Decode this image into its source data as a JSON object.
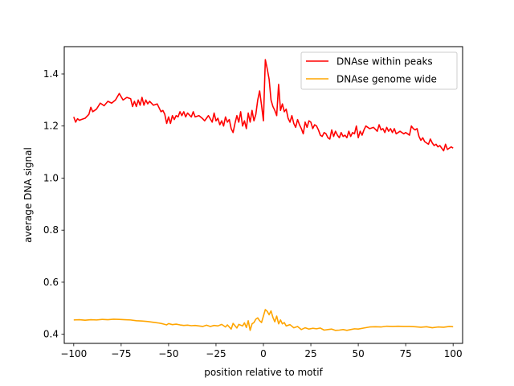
{
  "chart_data": {
    "type": "line",
    "title": "",
    "xlabel": "position relative to motif",
    "ylabel": "average DNA signal",
    "xlim": [
      -105,
      105
    ],
    "ylim": [
      0.365,
      1.505
    ],
    "xticks": [
      -100,
      -75,
      -50,
      -25,
      0,
      25,
      50,
      75,
      100
    ],
    "yticks": [
      0.4,
      0.6,
      0.8,
      1.0,
      1.2,
      1.4
    ],
    "xtick_labels": [
      "−100",
      "−75",
      "−50",
      "−25",
      "0",
      "25",
      "50",
      "75",
      "100"
    ],
    "ytick_labels": [
      "0.4",
      "0.6",
      "0.8",
      "1.0",
      "1.2",
      "1.4"
    ],
    "grid": false,
    "legend_position": "top-right",
    "series": [
      {
        "name": "DNAse within peaks",
        "color": "#ff0000",
        "points": [
          [
            -100,
            1.235
          ],
          [
            -99,
            1.215
          ],
          [
            -98,
            1.228
          ],
          [
            -97,
            1.222
          ],
          [
            -96,
            1.225
          ],
          [
            -94,
            1.23
          ],
          [
            -92,
            1.245
          ],
          [
            -91,
            1.272
          ],
          [
            -90,
            1.255
          ],
          [
            -88,
            1.265
          ],
          [
            -86,
            1.288
          ],
          [
            -84,
            1.278
          ],
          [
            -82,
            1.295
          ],
          [
            -80,
            1.288
          ],
          [
            -78,
            1.3
          ],
          [
            -76,
            1.325
          ],
          [
            -74,
            1.3
          ],
          [
            -72,
            1.31
          ],
          [
            -70,
            1.305
          ],
          [
            -69,
            1.275
          ],
          [
            -68,
            1.295
          ],
          [
            -67,
            1.275
          ],
          [
            -66,
            1.3
          ],
          [
            -65,
            1.28
          ],
          [
            -64,
            1.31
          ],
          [
            -63,
            1.28
          ],
          [
            -62,
            1.3
          ],
          [
            -61,
            1.285
          ],
          [
            -60,
            1.295
          ],
          [
            -58,
            1.28
          ],
          [
            -56,
            1.285
          ],
          [
            -55,
            1.27
          ],
          [
            -54,
            1.255
          ],
          [
            -53,
            1.26
          ],
          [
            -52,
            1.245
          ],
          [
            -51,
            1.21
          ],
          [
            -50,
            1.235
          ],
          [
            -49,
            1.21
          ],
          [
            -48,
            1.24
          ],
          [
            -47,
            1.225
          ],
          [
            -46,
            1.24
          ],
          [
            -45,
            1.235
          ],
          [
            -44,
            1.255
          ],
          [
            -43,
            1.24
          ],
          [
            -42,
            1.255
          ],
          [
            -41,
            1.235
          ],
          [
            -40,
            1.25
          ],
          [
            -38,
            1.235
          ],
          [
            -37,
            1.255
          ],
          [
            -36,
            1.235
          ],
          [
            -34,
            1.24
          ],
          [
            -32,
            1.228
          ],
          [
            -31,
            1.22
          ],
          [
            -29,
            1.24
          ],
          [
            -27,
            1.215
          ],
          [
            -26,
            1.25
          ],
          [
            -25,
            1.22
          ],
          [
            -24,
            1.23
          ],
          [
            -23,
            1.205
          ],
          [
            -22,
            1.22
          ],
          [
            -21,
            1.2
          ],
          [
            -20,
            1.235
          ],
          [
            -19,
            1.215
          ],
          [
            -18,
            1.225
          ],
          [
            -17,
            1.19
          ],
          [
            -16,
            1.175
          ],
          [
            -15,
            1.21
          ],
          [
            -14,
            1.24
          ],
          [
            -13,
            1.215
          ],
          [
            -12,
            1.255
          ],
          [
            -11,
            1.2
          ],
          [
            -10,
            1.22
          ],
          [
            -9,
            1.19
          ],
          [
            -8,
            1.25
          ],
          [
            -7,
            1.215
          ],
          [
            -6,
            1.26
          ],
          [
            -5,
            1.22
          ],
          [
            -4,
            1.245
          ],
          [
            -3,
            1.3
          ],
          [
            -2,
            1.335
          ],
          [
            -1,
            1.28
          ],
          [
            0,
            1.22
          ],
          [
            1,
            1.455
          ],
          [
            2,
            1.42
          ],
          [
            3,
            1.38
          ],
          [
            4,
            1.3
          ],
          [
            5,
            1.275
          ],
          [
            6,
            1.26
          ],
          [
            7,
            1.24
          ],
          [
            8,
            1.36
          ],
          [
            9,
            1.26
          ],
          [
            10,
            1.285
          ],
          [
            11,
            1.255
          ],
          [
            12,
            1.265
          ],
          [
            13,
            1.23
          ],
          [
            14,
            1.215
          ],
          [
            15,
            1.24
          ],
          [
            16,
            1.21
          ],
          [
            17,
            1.195
          ],
          [
            18,
            1.225
          ],
          [
            19,
            1.205
          ],
          [
            20,
            1.19
          ],
          [
            21,
            1.17
          ],
          [
            22,
            1.215
          ],
          [
            23,
            1.195
          ],
          [
            24,
            1.22
          ],
          [
            25,
            1.215
          ],
          [
            26,
            1.19
          ],
          [
            27,
            1.205
          ],
          [
            28,
            1.2
          ],
          [
            29,
            1.185
          ],
          [
            30,
            1.165
          ],
          [
            31,
            1.16
          ],
          [
            32,
            1.175
          ],
          [
            33,
            1.17
          ],
          [
            34,
            1.155
          ],
          [
            35,
            1.15
          ],
          [
            36,
            1.185
          ],
          [
            37,
            1.16
          ],
          [
            38,
            1.18
          ],
          [
            39,
            1.165
          ],
          [
            40,
            1.155
          ],
          [
            41,
            1.175
          ],
          [
            42,
            1.16
          ],
          [
            43,
            1.165
          ],
          [
            44,
            1.155
          ],
          [
            45,
            1.18
          ],
          [
            46,
            1.16
          ],
          [
            47,
            1.175
          ],
          [
            48,
            1.17
          ],
          [
            49,
            1.2
          ],
          [
            50,
            1.155
          ],
          [
            51,
            1.18
          ],
          [
            52,
            1.165
          ],
          [
            53,
            1.185
          ],
          [
            54,
            1.2
          ],
          [
            56,
            1.19
          ],
          [
            58,
            1.195
          ],
          [
            60,
            1.18
          ],
          [
            61,
            1.205
          ],
          [
            62,
            1.185
          ],
          [
            63,
            1.19
          ],
          [
            64,
            1.175
          ],
          [
            65,
            1.195
          ],
          [
            66,
            1.18
          ],
          [
            67,
            1.19
          ],
          [
            68,
            1.175
          ],
          [
            69,
            1.19
          ],
          [
            70,
            1.17
          ],
          [
            72,
            1.18
          ],
          [
            74,
            1.17
          ],
          [
            75,
            1.175
          ],
          [
            76,
            1.17
          ],
          [
            77,
            1.165
          ],
          [
            78,
            1.2
          ],
          [
            79,
            1.19
          ],
          [
            80,
            1.185
          ],
          [
            81,
            1.19
          ],
          [
            82,
            1.16
          ],
          [
            83,
            1.145
          ],
          [
            84,
            1.155
          ],
          [
            85,
            1.14
          ],
          [
            86,
            1.135
          ],
          [
            87,
            1.13
          ],
          [
            88,
            1.15
          ],
          [
            89,
            1.135
          ],
          [
            90,
            1.125
          ],
          [
            91,
            1.13
          ],
          [
            92,
            1.12
          ],
          [
            93,
            1.125
          ],
          [
            94,
            1.115
          ],
          [
            95,
            1.105
          ],
          [
            96,
            1.13
          ],
          [
            97,
            1.11
          ],
          [
            98,
            1.115
          ],
          [
            99,
            1.12
          ],
          [
            100,
            1.115
          ]
        ]
      },
      {
        "name": "DNAse genome wide",
        "color": "#ffa500",
        "points": [
          [
            -100,
            0.455
          ],
          [
            -97,
            0.456
          ],
          [
            -94,
            0.454
          ],
          [
            -91,
            0.456
          ],
          [
            -88,
            0.455
          ],
          [
            -85,
            0.457
          ],
          [
            -82,
            0.456
          ],
          [
            -79,
            0.458
          ],
          [
            -76,
            0.457
          ],
          [
            -73,
            0.456
          ],
          [
            -70,
            0.455
          ],
          [
            -67,
            0.452
          ],
          [
            -64,
            0.451
          ],
          [
            -61,
            0.449
          ],
          [
            -58,
            0.446
          ],
          [
            -55,
            0.443
          ],
          [
            -53,
            0.44
          ],
          [
            -51,
            0.436
          ],
          [
            -50,
            0.441
          ],
          [
            -48,
            0.437
          ],
          [
            -46,
            0.439
          ],
          [
            -44,
            0.436
          ],
          [
            -42,
            0.434
          ],
          [
            -40,
            0.435
          ],
          [
            -38,
            0.433
          ],
          [
            -36,
            0.434
          ],
          [
            -34,
            0.432
          ],
          [
            -32,
            0.43
          ],
          [
            -30,
            0.435
          ],
          [
            -28,
            0.43
          ],
          [
            -26,
            0.434
          ],
          [
            -24,
            0.432
          ],
          [
            -22,
            0.438
          ],
          [
            -20,
            0.428
          ],
          [
            -19,
            0.436
          ],
          [
            -17,
            0.42
          ],
          [
            -16,
            0.442
          ],
          [
            -14,
            0.424
          ],
          [
            -13,
            0.438
          ],
          [
            -11,
            0.432
          ],
          [
            -10,
            0.444
          ],
          [
            -9,
            0.426
          ],
          [
            -8,
            0.452
          ],
          [
            -7,
            0.415
          ],
          [
            -6,
            0.44
          ],
          [
            -5,
            0.445
          ],
          [
            -4,
            0.458
          ],
          [
            -3,
            0.463
          ],
          [
            -2,
            0.452
          ],
          [
            -1,
            0.445
          ],
          [
            0,
            0.47
          ],
          [
            1,
            0.495
          ],
          [
            2,
            0.488
          ],
          [
            3,
            0.475
          ],
          [
            4,
            0.49
          ],
          [
            5,
            0.465
          ],
          [
            6,
            0.448
          ],
          [
            7,
            0.47
          ],
          [
            8,
            0.44
          ],
          [
            9,
            0.455
          ],
          [
            10,
            0.44
          ],
          [
            11,
            0.445
          ],
          [
            12,
            0.432
          ],
          [
            14,
            0.437
          ],
          [
            16,
            0.425
          ],
          [
            18,
            0.43
          ],
          [
            20,
            0.418
          ],
          [
            22,
            0.425
          ],
          [
            24,
            0.42
          ],
          [
            26,
            0.423
          ],
          [
            28,
            0.421
          ],
          [
            30,
            0.424
          ],
          [
            32,
            0.416
          ],
          [
            34,
            0.418
          ],
          [
            36,
            0.42
          ],
          [
            38,
            0.415
          ],
          [
            40,
            0.416
          ],
          [
            42,
            0.418
          ],
          [
            44,
            0.415
          ],
          [
            46,
            0.418
          ],
          [
            48,
            0.421
          ],
          [
            50,
            0.42
          ],
          [
            53,
            0.424
          ],
          [
            56,
            0.428
          ],
          [
            59,
            0.429
          ],
          [
            62,
            0.428
          ],
          [
            65,
            0.431
          ],
          [
            68,
            0.43
          ],
          [
            71,
            0.431
          ],
          [
            74,
            0.43
          ],
          [
            77,
            0.43
          ],
          [
            80,
            0.429
          ],
          [
            83,
            0.427
          ],
          [
            86,
            0.429
          ],
          [
            89,
            0.425
          ],
          [
            92,
            0.428
          ],
          [
            95,
            0.427
          ],
          [
            98,
            0.43
          ],
          [
            100,
            0.429
          ]
        ]
      }
    ]
  }
}
